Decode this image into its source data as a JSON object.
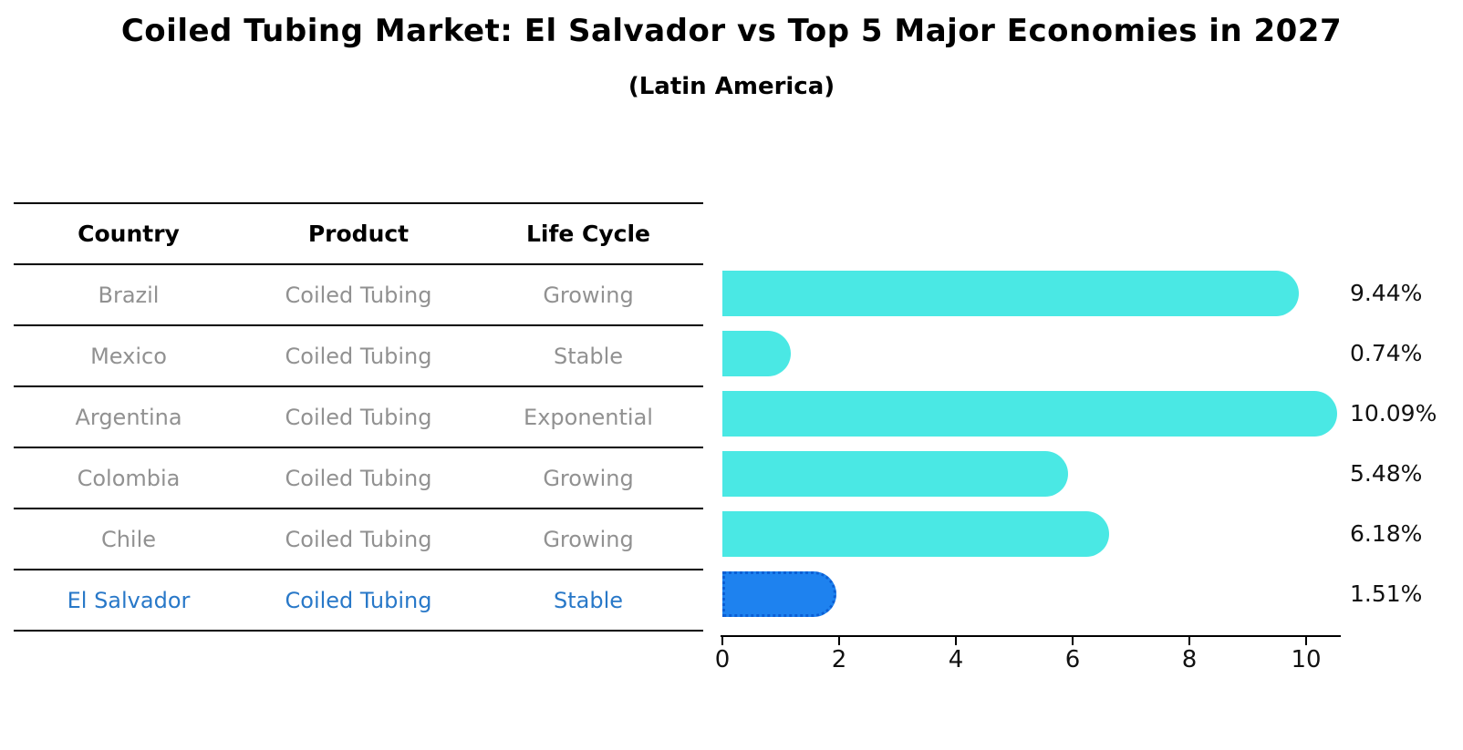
{
  "title": "Coiled Tubing Market: El Salvador vs Top 5 Major Economies in 2027",
  "subtitle": "(Latin America)",
  "table": {
    "headers": [
      "Country",
      "Product",
      "Life Cycle"
    ],
    "rows": [
      {
        "country": "Brazil",
        "product": "Coiled Tubing",
        "life_cycle": "Growing",
        "highlight": false
      },
      {
        "country": "Mexico",
        "product": "Coiled Tubing",
        "life_cycle": "Stable",
        "highlight": false
      },
      {
        "country": "Argentina",
        "product": "Coiled Tubing",
        "life_cycle": "Exponential",
        "highlight": false
      },
      {
        "country": "Colombia",
        "product": "Coiled Tubing",
        "life_cycle": "Growing",
        "highlight": false
      },
      {
        "country": "Chile",
        "product": "Coiled Tubing",
        "life_cycle": "Growing",
        "highlight": false
      },
      {
        "country": "El Salvador",
        "product": "Coiled Tubing",
        "life_cycle": "Stable",
        "highlight": true
      }
    ]
  },
  "chart_data": {
    "type": "bar",
    "orientation": "horizontal",
    "title": "Coiled Tubing Market: El Salvador vs Top 5 Major Economies in 2027",
    "subtitle": "(Latin America)",
    "categories": [
      "Brazil",
      "Mexico",
      "Argentina",
      "Colombia",
      "Chile",
      "El Salvador"
    ],
    "values": [
      9.44,
      0.74,
      10.09,
      5.48,
      6.18,
      1.51
    ],
    "value_labels": [
      "9.44%",
      "0.74%",
      "10.09%",
      "5.48%",
      "6.18%",
      "1.51%"
    ],
    "xlabel": "",
    "ylabel": "",
    "xlim": [
      0,
      10.6
    ],
    "x_ticks": [
      0,
      2,
      4,
      6,
      8,
      10
    ],
    "x_tick_labels": [
      "0",
      "2",
      "4",
      "6",
      "8",
      "10"
    ],
    "grid": false,
    "legend": false,
    "highlight_index": 5,
    "colors": {
      "bar": "#4AE8E4",
      "highlight_bar": "#1E82EF",
      "highlight_border": "#0C5FD4",
      "highlight_text": "#2878C8",
      "row_text": "#919191",
      "header_text": "#000000"
    }
  }
}
